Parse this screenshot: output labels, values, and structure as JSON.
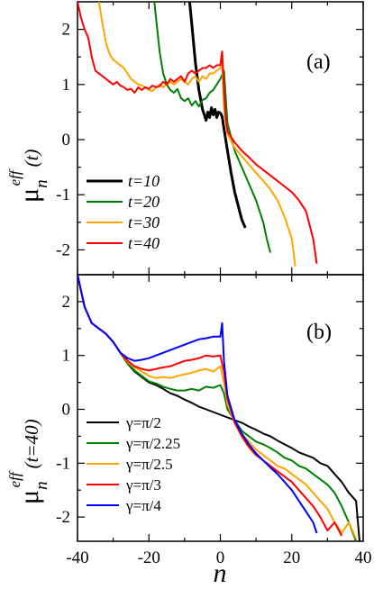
{
  "figure": {
    "xlabel": "n",
    "xticks": [
      "-40",
      "-20",
      "0",
      "20",
      "40"
    ],
    "yticks": [
      "-2",
      "-1",
      "0",
      "1",
      "2"
    ]
  },
  "chart_data": [
    {
      "type": "line",
      "panel_label": "(a)",
      "ylabel_main": "μ",
      "ylabel_sub": "n",
      "ylabel_sup": "eff",
      "ylabel_arg": "(t)",
      "xlabel": "",
      "xlim": [
        -40,
        40
      ],
      "ylim": [
        -2.45,
        2.5
      ],
      "legend_position": "bottom-left",
      "series": [
        {
          "name": "t=10",
          "color": "#000000",
          "width": 3,
          "x": [
            -8.6,
            -8,
            -7,
            -6,
            -5,
            -4,
            -3.5,
            -3,
            -2.5,
            -2,
            -1.5,
            -1,
            -0.5,
            0,
            0.5,
            1,
            2,
            3,
            4,
            5,
            6,
            7
          ],
          "y": [
            2.5,
            2.1,
            1.4,
            0.9,
            0.55,
            0.35,
            0.5,
            0.4,
            0.58,
            0.45,
            0.55,
            0.4,
            0.5,
            0.48,
            0.42,
            0.2,
            -0.2,
            -0.6,
            -0.95,
            -1.2,
            -1.45,
            -1.6
          ]
        },
        {
          "name": "t=20",
          "color": "#008000",
          "width": 2,
          "x": [
            -18.5,
            -18,
            -17,
            -16,
            -15,
            -14,
            -13,
            -12,
            -11,
            -10,
            -9,
            -8,
            -7,
            -6,
            -5,
            -4,
            -3,
            -2,
            -1,
            0,
            1,
            2,
            4,
            6,
            8,
            10,
            12,
            13,
            14
          ],
          "y": [
            2.5,
            2.2,
            1.6,
            1.2,
            1.0,
            0.9,
            0.85,
            0.92,
            0.75,
            0.7,
            0.75,
            0.62,
            0.7,
            0.6,
            0.72,
            0.75,
            0.85,
            0.9,
            1.0,
            1.1,
            1.25,
            0.3,
            -0.2,
            -0.5,
            -0.8,
            -1.1,
            -1.5,
            -1.8,
            -2.05
          ]
        },
        {
          "name": "t=30",
          "color": "#FFA500",
          "width": 2,
          "x": [
            -34,
            -33,
            -32,
            -31,
            -30,
            -29,
            -28,
            -27,
            -26,
            -25,
            -24,
            -23,
            -22,
            -21,
            -20,
            -19,
            -18,
            -17,
            -16,
            -15,
            -14,
            -13,
            -12,
            -11,
            -10,
            -9,
            -8,
            -7,
            -6,
            -5,
            -4,
            -3,
            -2,
            -1,
            0,
            0.5,
            1,
            2,
            4,
            6,
            8,
            10,
            12,
            14,
            16,
            18,
            20,
            21
          ],
          "y": [
            2.5,
            2.1,
            1.75,
            1.55,
            1.45,
            1.4,
            1.35,
            1.3,
            1.2,
            1.1,
            1.05,
            1.0,
            0.98,
            0.95,
            0.9,
            0.88,
            0.95,
            1.0,
            0.95,
            1.0,
            1.05,
            1.0,
            1.05,
            1.1,
            1.05,
            1.0,
            1.1,
            1.15,
            1.05,
            1.15,
            1.1,
            1.2,
            1.2,
            1.25,
            1.3,
            1.4,
            0.6,
            0.1,
            -0.15,
            -0.3,
            -0.45,
            -0.6,
            -0.75,
            -0.9,
            -1.1,
            -1.4,
            -1.8,
            -2.3
          ]
        },
        {
          "name": "t=40",
          "color": "#FF0000",
          "width": 2,
          "x": [
            -40,
            -39,
            -38,
            -37,
            -36,
            -35,
            -34,
            -33,
            -32,
            -31,
            -30,
            -29,
            -28,
            -27,
            -26,
            -25,
            -24,
            -23,
            -22,
            -21,
            -20,
            -19,
            -18,
            -17,
            -16,
            -15,
            -14,
            -13,
            -12,
            -11,
            -10,
            -9,
            -8,
            -7,
            -6,
            -5,
            -4,
            -3,
            -2,
            -1,
            0,
            0.5,
            1,
            1.5,
            2,
            4,
            6,
            8,
            10,
            12,
            14,
            16,
            18,
            20,
            22,
            24,
            26,
            27
          ],
          "y": [
            2.5,
            2.2,
            2.0,
            1.85,
            1.5,
            1.25,
            1.2,
            1.15,
            1.1,
            1.05,
            1.0,
            1.05,
            0.98,
            0.95,
            0.9,
            0.92,
            0.85,
            0.95,
            0.9,
            0.95,
            0.92,
            0.98,
            0.95,
            0.97,
            1.05,
            1.0,
            1.1,
            1.05,
            1.1,
            1.15,
            1.05,
            1.2,
            1.25,
            1.2,
            1.25,
            1.3,
            1.3,
            1.35,
            1.3,
            1.35,
            1.35,
            1.6,
            0.9,
            0.4,
            0.15,
            -0.05,
            -0.2,
            -0.32,
            -0.45,
            -0.55,
            -0.65,
            -0.75,
            -0.85,
            -0.95,
            -1.1,
            -1.3,
            -1.8,
            -2.25
          ]
        }
      ]
    },
    {
      "type": "line",
      "panel_label": "(b)",
      "ylabel_main": "μ",
      "ylabel_sub": "n",
      "ylabel_sup": "eff",
      "ylabel_arg": "(t=40)",
      "xlabel": "n",
      "xlim": [
        -40,
        40
      ],
      "ylim": [
        -2.45,
        2.5
      ],
      "legend_position": "bottom-left",
      "series": [
        {
          "name": "γ=π/2",
          "color": "#000000",
          "width": 2,
          "x": [
            -40,
            -38,
            -36,
            -34,
            -32,
            -30,
            -28,
            -26,
            -24,
            -22,
            -20,
            -18,
            -16,
            -14,
            -12,
            -10,
            -8,
            -6,
            -4,
            -2,
            0,
            2,
            4,
            6,
            8,
            10,
            12,
            14,
            16,
            18,
            20,
            22,
            24,
            26,
            28,
            30,
            32,
            34,
            36,
            38,
            39
          ],
          "y": [
            2.5,
            1.9,
            1.6,
            1.5,
            1.4,
            1.25,
            1.05,
            0.85,
            0.7,
            0.6,
            0.5,
            0.45,
            0.38,
            0.3,
            0.25,
            0.18,
            0.12,
            0.05,
            0.0,
            -0.05,
            -0.1,
            -0.15,
            -0.2,
            -0.25,
            -0.32,
            -0.38,
            -0.45,
            -0.5,
            -0.58,
            -0.65,
            -0.72,
            -0.8,
            -0.85,
            -0.9,
            -1.0,
            -1.05,
            -1.2,
            -1.35,
            -1.55,
            -1.7,
            -2.45
          ]
        },
        {
          "name": "γ=π/2.25",
          "color": "#008000",
          "width": 2,
          "x": [
            -40,
            -38,
            -36,
            -34,
            -32,
            -30,
            -28,
            -26,
            -24,
            -22,
            -20,
            -18,
            -16,
            -14,
            -12,
            -10,
            -8,
            -6,
            -4,
            -2,
            0,
            1,
            2,
            4,
            6,
            8,
            10,
            12,
            14,
            16,
            18,
            20,
            22,
            24,
            26,
            28,
            30,
            32,
            34,
            36,
            38
          ],
          "y": [
            2.5,
            1.9,
            1.6,
            1.5,
            1.4,
            1.25,
            1.05,
            0.85,
            0.72,
            0.62,
            0.52,
            0.48,
            0.42,
            0.38,
            0.35,
            0.35,
            0.38,
            0.35,
            0.42,
            0.4,
            0.45,
            0.3,
            0.0,
            -0.2,
            -0.4,
            -0.5,
            -0.6,
            -0.65,
            -0.72,
            -0.8,
            -0.9,
            -0.95,
            -1.05,
            -1.1,
            -1.2,
            -1.3,
            -1.4,
            -1.55,
            -1.8,
            -2.1,
            -2.45
          ]
        },
        {
          "name": "γ=π/2.5",
          "color": "#FFA500",
          "width": 2,
          "x": [
            -40,
            -38,
            -36,
            -34,
            -32,
            -30,
            -28,
            -26,
            -24,
            -22,
            -20,
            -18,
            -16,
            -14,
            -12,
            -10,
            -8,
            -6,
            -4,
            -2,
            0,
            1,
            2,
            4,
            6,
            8,
            10,
            12,
            14,
            16,
            18,
            20,
            22,
            24,
            26,
            28,
            30,
            32,
            34,
            36,
            38
          ],
          "y": [
            2.5,
            1.9,
            1.6,
            1.5,
            1.4,
            1.25,
            1.05,
            0.88,
            0.78,
            0.7,
            0.62,
            0.58,
            0.6,
            0.58,
            0.62,
            0.65,
            0.68,
            0.72,
            0.75,
            0.7,
            0.8,
            0.5,
            0.1,
            -0.25,
            -0.45,
            -0.6,
            -0.75,
            -0.85,
            -0.95,
            -1.05,
            -1.1,
            -1.2,
            -1.3,
            -1.4,
            -1.55,
            -1.7,
            -1.85,
            -2.1,
            -2.3,
            -2.1,
            -2.4
          ]
        },
        {
          "name": "γ=π/3",
          "color": "#FF0000",
          "width": 2,
          "x": [
            -40,
            -38,
            -36,
            -34,
            -32,
            -30,
            -28,
            -26,
            -24,
            -22,
            -20,
            -18,
            -16,
            -14,
            -12,
            -10,
            -8,
            -6,
            -4,
            -2,
            0,
            1,
            2,
            4,
            6,
            8,
            10,
            12,
            14,
            16,
            18,
            20,
            22,
            24,
            26,
            28,
            30,
            32,
            34
          ],
          "y": [
            2.5,
            1.9,
            1.6,
            1.5,
            1.4,
            1.25,
            1.05,
            0.9,
            0.8,
            0.75,
            0.72,
            0.75,
            0.78,
            0.8,
            0.85,
            0.9,
            0.92,
            0.95,
            1.0,
            0.98,
            1.0,
            0.7,
            0.2,
            -0.25,
            -0.5,
            -0.7,
            -0.85,
            -0.95,
            -1.05,
            -1.15,
            -1.25,
            -1.35,
            -1.5,
            -1.65,
            -1.8,
            -2.0,
            -2.25,
            -2.1,
            -2.35
          ]
        },
        {
          "name": "γ=π/4",
          "color": "#0000FF",
          "width": 2,
          "x": [
            -40,
            -38,
            -36,
            -34,
            -32,
            -30,
            -28,
            -26,
            -24,
            -22,
            -20,
            -18,
            -16,
            -14,
            -12,
            -10,
            -8,
            -6,
            -4,
            -2,
            0,
            0.5,
            1,
            2,
            4,
            6,
            8,
            10,
            12,
            14,
            16,
            18,
            20,
            22,
            24,
            26,
            27
          ],
          "y": [
            2.5,
            1.9,
            1.6,
            1.5,
            1.4,
            1.25,
            1.05,
            0.95,
            0.9,
            0.92,
            0.95,
            1.0,
            1.05,
            1.1,
            1.15,
            1.2,
            1.25,
            1.3,
            1.32,
            1.35,
            1.35,
            1.6,
            0.9,
            0.25,
            -0.2,
            -0.45,
            -0.65,
            -0.82,
            -0.95,
            -1.08,
            -1.2,
            -1.35,
            -1.5,
            -1.7,
            -1.9,
            -2.1,
            -2.3
          ]
        }
      ]
    }
  ]
}
